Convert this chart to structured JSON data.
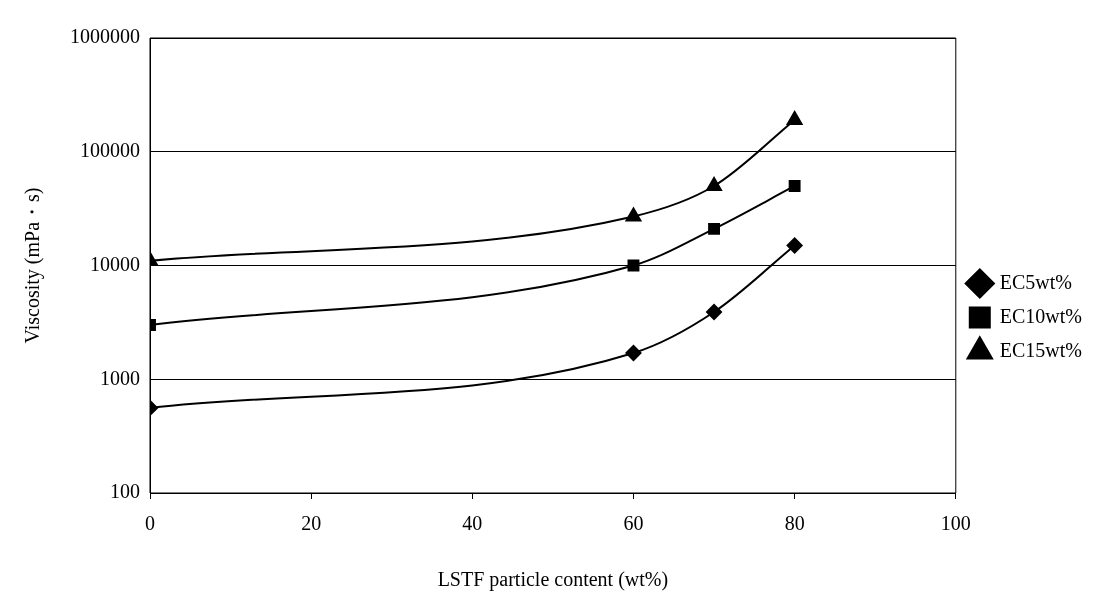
{
  "chart_data": {
    "type": "line",
    "xlabel": "LSTF particle content (wt%)",
    "ylabel": "Viscosity (mPa・s)",
    "xlim": [
      0,
      100
    ],
    "xticks": [
      0,
      20,
      40,
      60,
      80,
      100
    ],
    "ylim": [
      100,
      1000000
    ],
    "yticks": [
      100,
      1000,
      10000,
      100000,
      1000000
    ],
    "log": "y",
    "grid": "y",
    "legend": "right",
    "series": [
      {
        "name": "EC5wt%",
        "color": "#000000",
        "marker": "diamond",
        "x": [
          0,
          60,
          70,
          80
        ],
        "values": [
          560,
          1700,
          3900,
          15000
        ]
      },
      {
        "name": "EC10wt%",
        "color": "#000000",
        "marker": "square",
        "x": [
          0,
          60,
          70,
          80
        ],
        "values": [
          3000,
          10000,
          21000,
          50000
        ]
      },
      {
        "name": "EC15wt%",
        "color": "#000000",
        "marker": "triangle",
        "x": [
          0,
          60,
          70,
          80
        ],
        "values": [
          11000,
          27000,
          50000,
          190000
        ]
      }
    ]
  }
}
